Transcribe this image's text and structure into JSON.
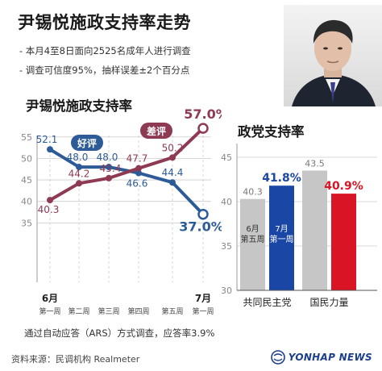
{
  "header": {
    "title": "尹锡悦施政支持率走势",
    "notes": [
      "- 本月4至8日面向2525名成年人进行调查",
      "- 调查可信度95%，抽样误差±2个百分点"
    ]
  },
  "footer": {
    "footnote": "通过自动应答（ARS）方式调查，应答率3.9%",
    "source": "资料来源：民调机构 Realmeter",
    "brand": "YONHAP NEWS"
  },
  "colors": {
    "approve": "#2d5b98",
    "disapprove": "#8e3a53",
    "dp_bar": "#1a47a6",
    "ppp_bar": "#d91525",
    "gray_bar": "#c6c6c6",
    "grid": "#cccccc"
  },
  "chart_data": [
    {
      "type": "line",
      "title": "尹锡悦施政支持率",
      "x": [
        "6月\n第一周",
        "第二周",
        "第三周",
        "第四周",
        "第五周",
        "7月\n第一周"
      ],
      "ylim": [
        30,
        57
      ],
      "yticks": [
        35,
        40,
        45,
        50,
        55
      ],
      "grid": true,
      "series": [
        {
          "name": "好评",
          "values": [
            52.1,
            48.0,
            48.0,
            46.6,
            44.4,
            37.0
          ],
          "labels": [
            "52.1",
            "48.0",
            "48.0",
            "46.6",
            "44.4",
            "37.0%"
          ]
        },
        {
          "name": "差评",
          "values": [
            40.3,
            44.2,
            45.4,
            47.7,
            50.2,
            57.0
          ],
          "labels": [
            "40.3",
            "44.2",
            "45.4",
            "47.7",
            "50.2",
            "57.0%"
          ]
        }
      ]
    },
    {
      "type": "bar",
      "title": "政党支持率",
      "categories": [
        "共同民主党",
        "国民力量"
      ],
      "ylim": [
        30,
        47
      ],
      "yticks": [
        30,
        35,
        40,
        45
      ],
      "grid": true,
      "series": [
        {
          "name": "6月第五周",
          "values": [
            40.3,
            43.5
          ],
          "labels": [
            "40.3",
            "43.5"
          ],
          "bar_text": "6月\n第五周"
        },
        {
          "name": "7月第一周",
          "values": [
            41.8,
            40.9
          ],
          "labels": [
            "41.8%",
            "40.9%"
          ],
          "bar_text": "7月\n第一周"
        }
      ]
    }
  ]
}
